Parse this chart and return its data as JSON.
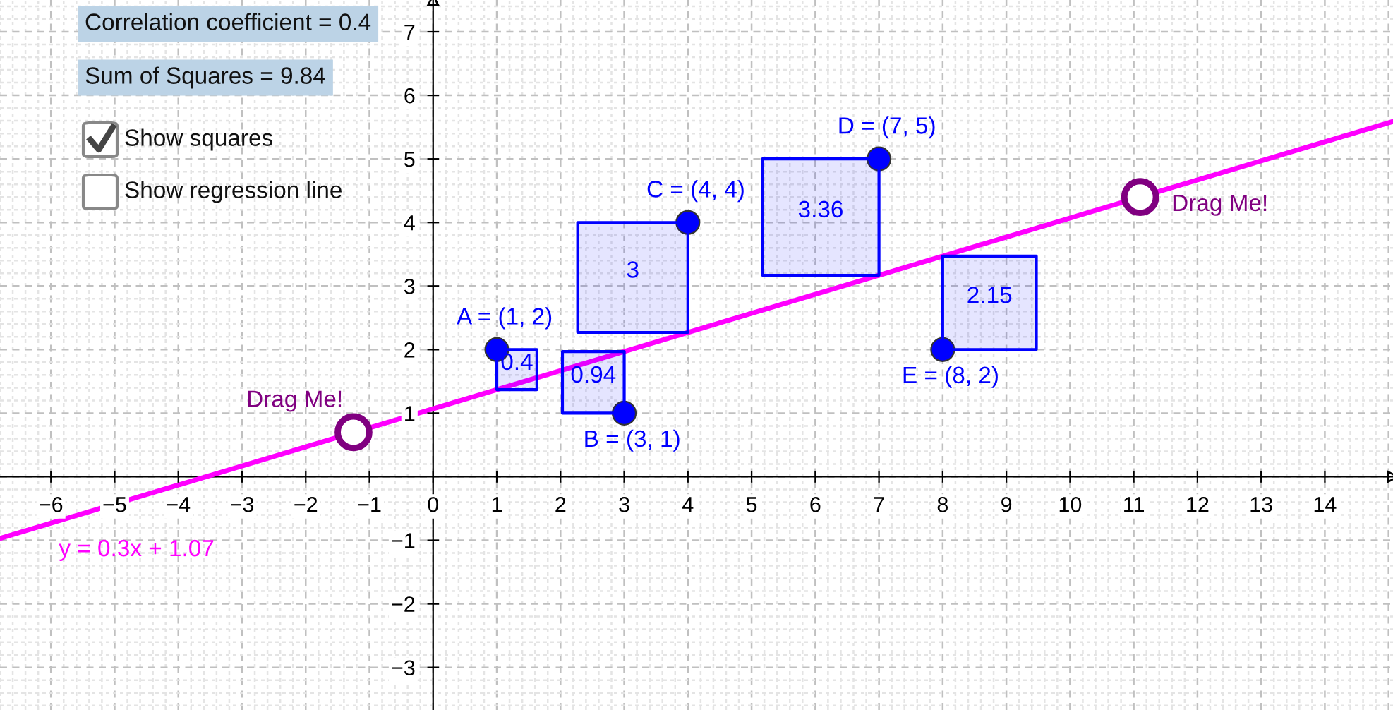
{
  "chart_data": {
    "type": "scatter",
    "xlim": [
      -6.8,
      15.07
    ],
    "ylim": [
      -3.67,
      7.5
    ],
    "xticks": [
      {
        "value": -6,
        "label": "−6"
      },
      {
        "value": -5,
        "label": "−5"
      },
      {
        "value": -4,
        "label": "−4"
      },
      {
        "value": -3,
        "label": "−3"
      },
      {
        "value": -2,
        "label": "−2"
      },
      {
        "value": -1,
        "label": "−1"
      },
      0,
      1,
      2,
      3,
      4,
      5,
      6,
      7,
      8,
      9,
      10,
      11,
      12,
      13,
      14
    ],
    "yticks": [
      {
        "value": -3,
        "label": "−3"
      },
      {
        "value": -2,
        "label": "−2"
      },
      {
        "value": -1,
        "label": "−1"
      },
      1,
      2,
      3,
      4,
      5,
      6,
      7
    ],
    "grid": true,
    "legend": false,
    "series": [
      {
        "type": "line",
        "name": "0.4",
        "color": "#0000ff",
        "x": [
          1,
          1.63
        ],
        "values": [
          null,
          null
        ],
        "lower": [
          1.37,
          1.37
        ],
        "upper": [
          2,
          2
        ]
      },
      {
        "type": "line",
        "name": "0.94",
        "color": "#0000ff",
        "x": [
          2.03,
          3
        ],
        "values": [
          null,
          null
        ],
        "lower": [
          1,
          1
        ],
        "upper": [
          1.97,
          1.97
        ]
      },
      {
        "type": "line",
        "name": "3",
        "color": "#0000ff",
        "x": [
          2.27,
          4
        ],
        "values": [
          null,
          null
        ],
        "lower": [
          2.27,
          2.27
        ],
        "upper": [
          4,
          4
        ]
      },
      {
        "type": "line",
        "name": "3.36",
        "color": "#0000ff",
        "x": [
          5.17,
          7
        ],
        "values": [
          null,
          null
        ],
        "lower": [
          3.17,
          3.17
        ],
        "upper": [
          5,
          5
        ]
      },
      {
        "type": "line",
        "name": "2.15",
        "color": "#0000ff",
        "x": [
          8,
          9.47
        ],
        "values": [
          null,
          null
        ],
        "lower": [
          2,
          2
        ],
        "upper": [
          3.47,
          3.47
        ]
      },
      {
        "type": "line",
        "name": "y = 0.3x + 1.07",
        "color": "#ff00ff",
        "x": [
          -6.8,
          15.07
        ],
        "values": [
          -0.97,
          5.59
        ],
        "line_style": "solid"
      },
      {
        "color": "#0000ff",
        "marker": "circle",
        "x": [
          1,
          3,
          4,
          7,
          8
        ],
        "values": [
          2,
          1,
          4,
          5,
          2
        ],
        "value_labels": [
          "A = (1, 2)",
          "B = (3, 1)",
          "C = (4, 4)",
          "D = (7, 5)",
          "E = (8, 2)"
        ]
      },
      {
        "color": "#800080",
        "marker": "circle",
        "x": [
          -1.25,
          11.1
        ],
        "values": [
          0.7,
          4.4
        ],
        "value_labels": [
          "Drag Me!",
          "Drag Me!"
        ]
      }
    ],
    "annotations": [
      "Correlation coefficient = 0.4",
      "Sum of Squares = 9.84",
      "Show squares",
      "Show regression line"
    ]
  }
}
